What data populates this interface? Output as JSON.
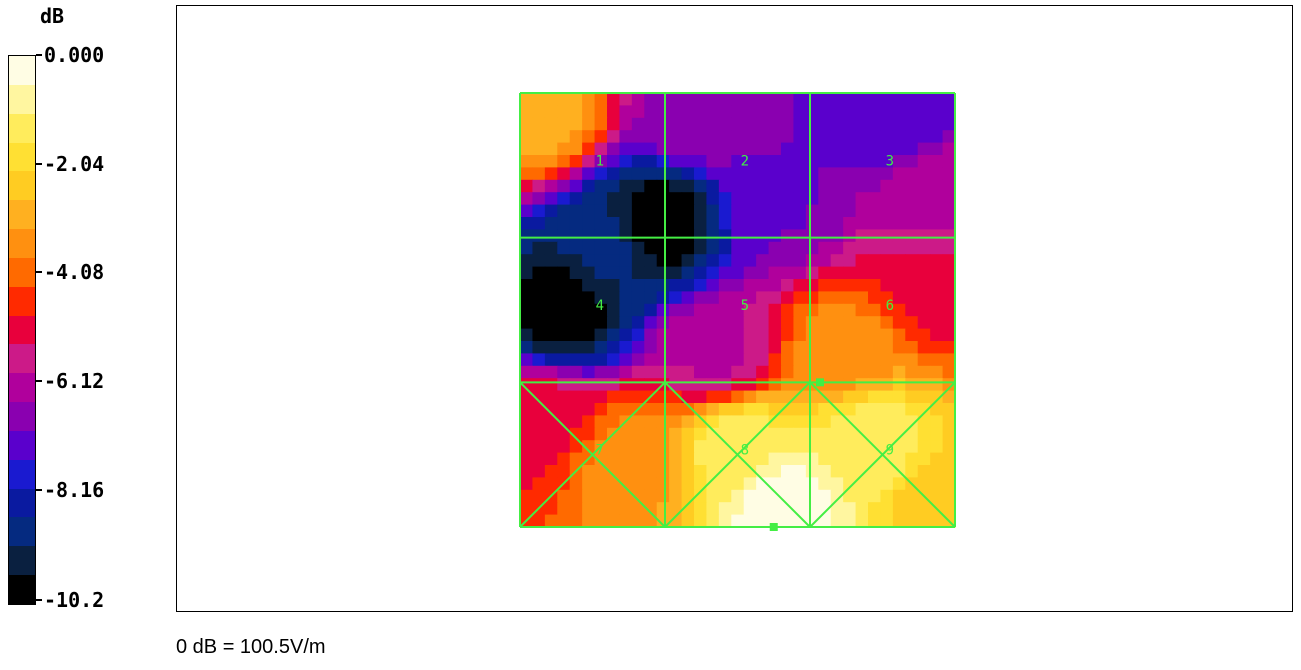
{
  "chart_data": {
    "type": "heatmap",
    "unit_label": "dB",
    "scale": {
      "ticks": [
        "0.000",
        "-2.04",
        "-4.08",
        "-6.12",
        "-8.16",
        "-10.2"
      ],
      "min": -10.2,
      "max": 0.0,
      "colors": [
        "#fffde4",
        "#fff6a0",
        "#ffec5c",
        "#ffe033",
        "#ffcc22",
        "#ffb020",
        "#ff9010",
        "#ff6a00",
        "#ff2a00",
        "#e8003c",
        "#cc1a88",
        "#b0009c",
        "#8a00b0",
        "#5a00cc",
        "#1a1ad0",
        "#0a1aa0",
        "#052a80",
        "#0a2040",
        "#000000"
      ]
    },
    "cells": [
      {
        "id": "1",
        "row": 0,
        "col": 0,
        "value": -6.0
      },
      {
        "id": "2",
        "row": 0,
        "col": 1,
        "value": -6.5
      },
      {
        "id": "3",
        "row": 0,
        "col": 2,
        "value": -6.2
      },
      {
        "id": "4",
        "row": 1,
        "col": 0,
        "value": -9.0
      },
      {
        "id": "5",
        "row": 1,
        "col": 1,
        "value": -5.5
      },
      {
        "id": "6",
        "row": 1,
        "col": 2,
        "value": -4.5
      },
      {
        "id": "7",
        "row": 2,
        "col": 0,
        "value": -4.0
      },
      {
        "id": "8",
        "row": 2,
        "col": 1,
        "value": -1.0
      },
      {
        "id": "9",
        "row": 2,
        "col": 2,
        "value": -2.0
      }
    ],
    "field_samples": [
      {
        "u": 0.05,
        "v": 0.05,
        "value": -3.0
      },
      {
        "u": 0.4,
        "v": 0.05,
        "value": -6.5
      },
      {
        "u": 0.85,
        "v": 0.05,
        "value": -7.5
      },
      {
        "u": 0.32,
        "v": 0.3,
        "value": -10.0
      },
      {
        "u": 0.1,
        "v": 0.5,
        "value": -10.0
      },
      {
        "u": 0.2,
        "v": 0.35,
        "value": -9.0
      },
      {
        "u": 0.6,
        "v": 0.25,
        "value": -7.0
      },
      {
        "u": 0.95,
        "v": 0.25,
        "value": -6.0
      },
      {
        "u": 0.95,
        "v": 0.45,
        "value": -5.0
      },
      {
        "u": 0.45,
        "v": 0.6,
        "value": -6.0
      },
      {
        "u": 0.75,
        "v": 0.6,
        "value": -3.5
      },
      {
        "u": 0.05,
        "v": 0.75,
        "value": -5.0
      },
      {
        "u": 0.25,
        "v": 0.85,
        "value": -3.5
      },
      {
        "u": 0.6,
        "v": 0.95,
        "value": -0.2
      },
      {
        "u": 0.8,
        "v": 0.8,
        "value": -1.2
      },
      {
        "u": 0.98,
        "v": 0.95,
        "value": -2.5
      },
      {
        "u": 0.5,
        "v": 0.82,
        "value": -1.3
      }
    ],
    "grid_color": "#44ee44"
  },
  "reference_note": "0 dB = 100.5V/m"
}
